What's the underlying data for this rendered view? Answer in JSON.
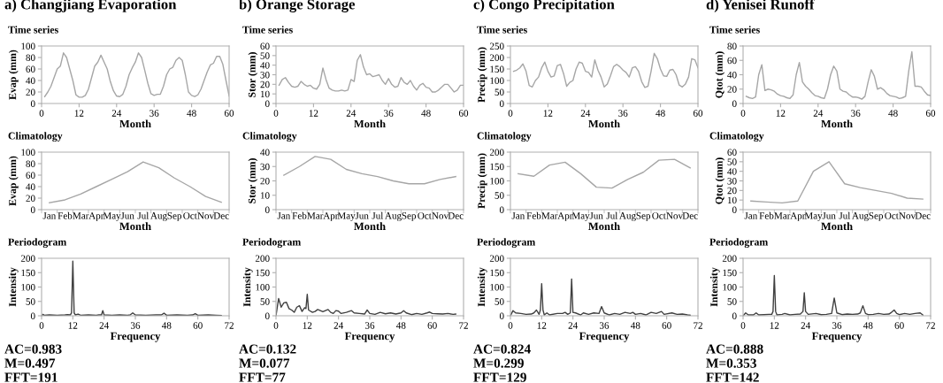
{
  "chart_data": [
    {
      "type": "line",
      "title": "a) Changjiang Evaporation",
      "subtitle": "Time series",
      "xlabel": "Month",
      "ylabel": "Evap (mm)",
      "color": "#a6a6a6",
      "grid": false,
      "legend": false,
      "xlim": [
        0,
        60
      ],
      "xticks": [
        0,
        12,
        24,
        36,
        48,
        60
      ],
      "ylim": [
        0,
        100
      ],
      "yticks": [
        0,
        20,
        40,
        60,
        80,
        100
      ],
      "x": [
        1,
        2,
        3,
        4,
        5,
        6,
        7,
        8,
        9,
        10,
        11,
        12,
        13,
        14,
        15,
        16,
        17,
        18,
        19,
        20,
        21,
        22,
        23,
        24,
        25,
        26,
        27,
        28,
        29,
        30,
        31,
        32,
        33,
        34,
        35,
        36,
        37,
        38,
        39,
        40,
        41,
        42,
        43,
        44,
        45,
        46,
        47,
        48,
        49,
        50,
        51,
        52,
        53,
        54,
        55,
        56,
        57,
        58,
        59,
        60
      ],
      "values": [
        12,
        20,
        30,
        45,
        60,
        65,
        88,
        80,
        60,
        40,
        15,
        11,
        11,
        14,
        25,
        45,
        65,
        72,
        84,
        72,
        60,
        38,
        22,
        13,
        12,
        16,
        30,
        50,
        62,
        72,
        88,
        80,
        58,
        35,
        17,
        14,
        16,
        16,
        30,
        50,
        60,
        63,
        75,
        80,
        75,
        50,
        20,
        14,
        12,
        15,
        25,
        40,
        55,
        67,
        70,
        82,
        82,
        68,
        40,
        13
      ]
    },
    {
      "type": "line",
      "title": "b) Orange Storage",
      "subtitle": "Time series",
      "xlabel": "Month",
      "ylabel": "Stor (mm)",
      "color": "#a6a6a6",
      "grid": false,
      "legend": false,
      "xlim": [
        0,
        60
      ],
      "xticks": [
        0,
        12,
        24,
        36,
        48,
        60
      ],
      "ylim": [
        0,
        60
      ],
      "yticks": [
        0,
        10,
        20,
        30,
        40,
        50,
        60
      ],
      "x": [
        1,
        2,
        3,
        4,
        5,
        6,
        7,
        8,
        9,
        10,
        11,
        12,
        13,
        14,
        15,
        16,
        17,
        18,
        19,
        20,
        21,
        22,
        23,
        24,
        25,
        26,
        27,
        28,
        29,
        30,
        31,
        32,
        33,
        34,
        35,
        36,
        37,
        38,
        39,
        40,
        41,
        42,
        43,
        44,
        45,
        46,
        47,
        48,
        49,
        50,
        51,
        52,
        53,
        54,
        55,
        56,
        57,
        58,
        59,
        60
      ],
      "values": [
        19,
        25,
        27,
        22,
        18,
        17,
        18,
        23,
        20,
        18,
        19,
        16,
        15,
        20,
        37,
        25,
        16,
        14,
        13,
        13,
        14,
        13,
        14,
        25,
        23,
        45,
        51,
        38,
        30,
        31,
        28,
        29,
        30,
        24,
        20,
        26,
        20,
        17,
        18,
        27,
        22,
        20,
        24,
        18,
        14,
        19,
        21,
        17,
        16,
        12,
        12,
        14,
        17,
        20,
        20,
        16,
        12,
        14,
        19,
        19
      ]
    },
    {
      "type": "line",
      "title": "c) Congo Precipitation",
      "subtitle": "Time series",
      "xlabel": "Month",
      "ylabel": "Precip (mm)",
      "color": "#a6a6a6",
      "grid": false,
      "legend": false,
      "xlim": [
        0,
        60
      ],
      "xticks": [
        0,
        12,
        24,
        36,
        48,
        60
      ],
      "ylim": [
        0,
        250
      ],
      "yticks": [
        0,
        50,
        100,
        150,
        200,
        250
      ],
      "x": [
        1,
        2,
        3,
        4,
        5,
        6,
        7,
        8,
        9,
        10,
        11,
        12,
        13,
        14,
        15,
        16,
        17,
        18,
        19,
        20,
        21,
        22,
        23,
        24,
        25,
        26,
        27,
        28,
        29,
        30,
        31,
        32,
        33,
        34,
        35,
        36,
        37,
        38,
        39,
        40,
        41,
        42,
        43,
        44,
        45,
        46,
        47,
        48,
        49,
        50,
        51,
        52,
        53,
        54,
        55,
        56,
        57,
        58,
        59,
        60
      ],
      "values": [
        140,
        145,
        155,
        172,
        140,
        78,
        72,
        100,
        115,
        155,
        180,
        140,
        115,
        120,
        165,
        170,
        130,
        75,
        92,
        100,
        150,
        180,
        175,
        140,
        135,
        115,
        190,
        145,
        115,
        72,
        85,
        120,
        160,
        170,
        160,
        145,
        135,
        115,
        155,
        160,
        140,
        95,
        70,
        75,
        140,
        218,
        195,
        150,
        120,
        118,
        145,
        148,
        125,
        80,
        72,
        85,
        115,
        195,
        190,
        155
      ]
    },
    {
      "type": "line",
      "title": "d) Yenisei Runoff",
      "subtitle": "Time series",
      "xlabel": "Month",
      "ylabel": "Qtot (mm)",
      "color": "#a6a6a6",
      "grid": false,
      "legend": false,
      "xlim": [
        0,
        60
      ],
      "xticks": [
        0,
        12,
        24,
        36,
        48,
        60
      ],
      "ylim": [
        0,
        80
      ],
      "yticks": [
        0,
        20,
        40,
        60,
        80
      ],
      "x": [
        1,
        2,
        3,
        4,
        5,
        6,
        7,
        8,
        9,
        10,
        11,
        12,
        13,
        14,
        15,
        16,
        17,
        18,
        19,
        20,
        21,
        22,
        23,
        24,
        25,
        26,
        27,
        28,
        29,
        30,
        31,
        32,
        33,
        34,
        35,
        36,
        37,
        38,
        39,
        40,
        41,
        42,
        43,
        44,
        45,
        46,
        47,
        48,
        49,
        50,
        51,
        52,
        53,
        54,
        55,
        56,
        57,
        58,
        59,
        60
      ],
      "values": [
        10,
        8,
        7,
        9,
        40,
        54,
        18,
        20,
        19,
        17,
        13,
        11,
        10,
        8,
        7,
        12,
        40,
        57,
        30,
        24,
        20,
        15,
        11,
        10,
        8,
        7,
        20,
        40,
        52,
        45,
        20,
        17,
        16,
        12,
        9,
        9,
        8,
        6,
        10,
        30,
        47,
        38,
        20,
        22,
        19,
        14,
        11,
        10,
        9,
        7,
        8,
        10,
        45,
        72,
        24,
        24,
        23,
        17,
        12,
        11
      ]
    },
    {
      "type": "line",
      "subtitle": "Climatology",
      "xlabel": "Month",
      "ylabel": "Evap (mm)",
      "color": "#a6a6a6",
      "grid": false,
      "legend": false,
      "ylim": [
        0,
        100
      ],
      "yticks": [
        0,
        20,
        40,
        60,
        80,
        100
      ],
      "categories": [
        "Jan",
        "Feb",
        "Mar",
        "Apr",
        "May",
        "Jun",
        "Jul",
        "Aug",
        "Sep",
        "Oct",
        "Nov",
        "Dec"
      ],
      "values": [
        12,
        17,
        27,
        40,
        53,
        66,
        83,
        73,
        55,
        40,
        23,
        13
      ]
    },
    {
      "type": "line",
      "subtitle": "Climatology",
      "xlabel": "Month",
      "ylabel": "Stor (mm)",
      "color": "#a6a6a6",
      "grid": false,
      "legend": false,
      "ylim": [
        0,
        40
      ],
      "yticks": [
        0,
        10,
        20,
        30,
        40
      ],
      "categories": [
        "Jan",
        "Feb",
        "Mar",
        "Apr",
        "May",
        "Jun",
        "Jul",
        "Aug",
        "Sep",
        "Oct",
        "Nov",
        "Dec"
      ],
      "values": [
        24,
        30,
        37,
        35,
        28,
        25,
        23,
        20,
        18,
        18,
        21,
        23
      ]
    },
    {
      "type": "line",
      "subtitle": "Climatology",
      "xlabel": "Month",
      "ylabel": "Precip (mm)",
      "color": "#a6a6a6",
      "grid": false,
      "legend": false,
      "ylim": [
        0,
        200
      ],
      "yticks": [
        0,
        50,
        100,
        150,
        200
      ],
      "categories": [
        "Jan",
        "Feb",
        "Mar",
        "Apr",
        "May",
        "Jun",
        "Jul",
        "Aug",
        "Sep",
        "Oct",
        "Nov",
        "Dec"
      ],
      "values": [
        125,
        116,
        155,
        165,
        125,
        78,
        75,
        105,
        130,
        172,
        175,
        145
      ]
    },
    {
      "type": "line",
      "subtitle": "Climatology",
      "xlabel": "Month",
      "ylabel": "Qtot (mm)",
      "color": "#a6a6a6",
      "grid": false,
      "legend": false,
      "ylim": [
        0,
        60
      ],
      "yticks": [
        0,
        10,
        20,
        30,
        40,
        50,
        60
      ],
      "categories": [
        "Jan",
        "Feb",
        "Mar",
        "Apr",
        "May",
        "Jun",
        "Jul",
        "Aug",
        "Sep",
        "Oct",
        "Nov",
        "Dec"
      ],
      "values": [
        9,
        8,
        7,
        9,
        40,
        50,
        27,
        23,
        20,
        17,
        12,
        11
      ]
    },
    {
      "type": "line",
      "subtitle": "Periodogram",
      "xlabel": "Frequency",
      "ylabel": "Intensity",
      "color": "#404040",
      "grid": false,
      "legend": false,
      "xlim": [
        0,
        72
      ],
      "xticks": [
        0,
        12,
        24,
        36,
        48,
        60,
        72
      ],
      "ylim": [
        0,
        200
      ],
      "yticks": [
        0,
        50,
        100,
        150,
        200
      ],
      "annotations": [
        "AC=0.983",
        "M=0.497",
        "FFT=191"
      ],
      "x": [
        0,
        0.5,
        1,
        3,
        6,
        9,
        10,
        11,
        11.5,
        12,
        12.5,
        13,
        14,
        15,
        18,
        21,
        22,
        23,
        23.5,
        24,
        27,
        30,
        33,
        34,
        35,
        36,
        40,
        44,
        46,
        47,
        48,
        52,
        56,
        58,
        59,
        60,
        64,
        67,
        69
      ],
      "values": [
        0,
        5,
        2,
        3,
        2,
        3,
        4,
        3,
        10,
        190,
        10,
        3,
        6,
        2,
        3,
        2,
        3,
        3,
        18,
        3,
        2,
        3,
        2,
        3,
        10,
        3,
        2,
        3,
        3,
        9,
        2,
        3,
        2,
        3,
        7,
        2,
        3,
        2,
        1
      ]
    },
    {
      "type": "line",
      "subtitle": "Periodogram",
      "xlabel": "Frequency",
      "ylabel": "Intensity",
      "color": "#404040",
      "grid": false,
      "legend": false,
      "xlim": [
        0,
        72
      ],
      "xticks": [
        0,
        12,
        24,
        36,
        48,
        60,
        72
      ],
      "ylim": [
        0,
        200
      ],
      "yticks": [
        0,
        50,
        100,
        150,
        200
      ],
      "annotations": [
        "AC=0.132",
        "M=0.077",
        "FFT=77"
      ],
      "x": [
        0,
        1,
        2,
        3,
        4,
        5,
        6,
        7,
        8,
        9,
        10,
        11,
        11.5,
        12,
        12.5,
        14,
        15,
        16,
        18,
        20,
        21,
        22,
        23,
        24,
        25,
        27,
        29,
        30,
        32,
        34,
        35,
        36,
        38,
        40,
        42,
        44,
        46,
        48,
        49,
        50,
        52,
        54,
        56,
        58,
        59,
        60,
        62,
        64,
        66,
        68,
        69
      ],
      "values": [
        0,
        60,
        30,
        45,
        47,
        25,
        20,
        12,
        30,
        35,
        15,
        28,
        25,
        75,
        20,
        12,
        15,
        22,
        14,
        22,
        12,
        8,
        18,
        16,
        8,
        12,
        18,
        10,
        8,
        6,
        20,
        8,
        5,
        12,
        7,
        10,
        6,
        10,
        18,
        10,
        4,
        8,
        5,
        10,
        13,
        8,
        7,
        6,
        8,
        5,
        6
      ]
    },
    {
      "type": "line",
      "subtitle": "Periodogram",
      "xlabel": "Frequency",
      "ylabel": "Intensity",
      "color": "#404040",
      "grid": false,
      "legend": false,
      "xlim": [
        0,
        72
      ],
      "xticks": [
        0,
        12,
        24,
        36,
        48,
        60,
        72
      ],
      "ylim": [
        0,
        200
      ],
      "yticks": [
        0,
        50,
        100,
        150,
        200
      ],
      "annotations": [
        "AC=0.824",
        "M=0.299",
        "FFT=129"
      ],
      "x": [
        0,
        1,
        2,
        4,
        6,
        8,
        9,
        10,
        11,
        11.5,
        12,
        12.5,
        13,
        14,
        15,
        18,
        20,
        21,
        22,
        23,
        23.5,
        24,
        25,
        27,
        28,
        30,
        32,
        34,
        35,
        36,
        38,
        40,
        42,
        44,
        46,
        47,
        48,
        50,
        52,
        54,
        56,
        58,
        59,
        62,
        64,
        66,
        68,
        69
      ],
      "values": [
        0,
        18,
        10,
        8,
        5,
        6,
        10,
        20,
        5,
        20,
        112,
        20,
        3,
        10,
        3,
        8,
        8,
        12,
        5,
        10,
        128,
        12,
        10,
        3,
        10,
        5,
        10,
        8,
        32,
        10,
        3,
        8,
        5,
        12,
        8,
        12,
        5,
        8,
        3,
        12,
        8,
        15,
        5,
        10,
        5,
        6,
        3,
        2
      ]
    },
    {
      "type": "line",
      "subtitle": "Periodogram",
      "xlabel": "Frequency",
      "ylabel": "Intensity",
      "color": "#404040",
      "grid": false,
      "legend": false,
      "xlim": [
        0,
        72
      ],
      "xticks": [
        0,
        12,
        24,
        36,
        48,
        60,
        72
      ],
      "ylim": [
        0,
        200
      ],
      "yticks": [
        0,
        50,
        100,
        150,
        200
      ],
      "annotations": [
        "AC=0.888",
        "M=0.353",
        "FFT=142"
      ],
      "x": [
        0,
        1,
        2,
        4,
        5,
        6,
        8,
        10,
        11,
        11.5,
        12,
        12.5,
        13,
        15,
        16,
        18,
        20,
        22,
        23,
        23.5,
        24,
        25,
        28,
        30,
        32,
        34,
        35,
        36,
        38,
        40,
        42,
        44,
        45,
        46,
        47,
        48,
        50,
        52,
        54,
        56,
        57,
        58,
        59,
        60,
        62,
        64,
        66,
        68,
        69
      ],
      "values": [
        0,
        10,
        3,
        3,
        10,
        3,
        4,
        5,
        5,
        15,
        140,
        15,
        3,
        5,
        8,
        3,
        5,
        6,
        15,
        80,
        15,
        5,
        8,
        4,
        5,
        8,
        62,
        10,
        4,
        6,
        5,
        6,
        10,
        35,
        8,
        4,
        5,
        8,
        5,
        6,
        12,
        20,
        8,
        4,
        8,
        5,
        8,
        10,
        3
      ]
    }
  ]
}
